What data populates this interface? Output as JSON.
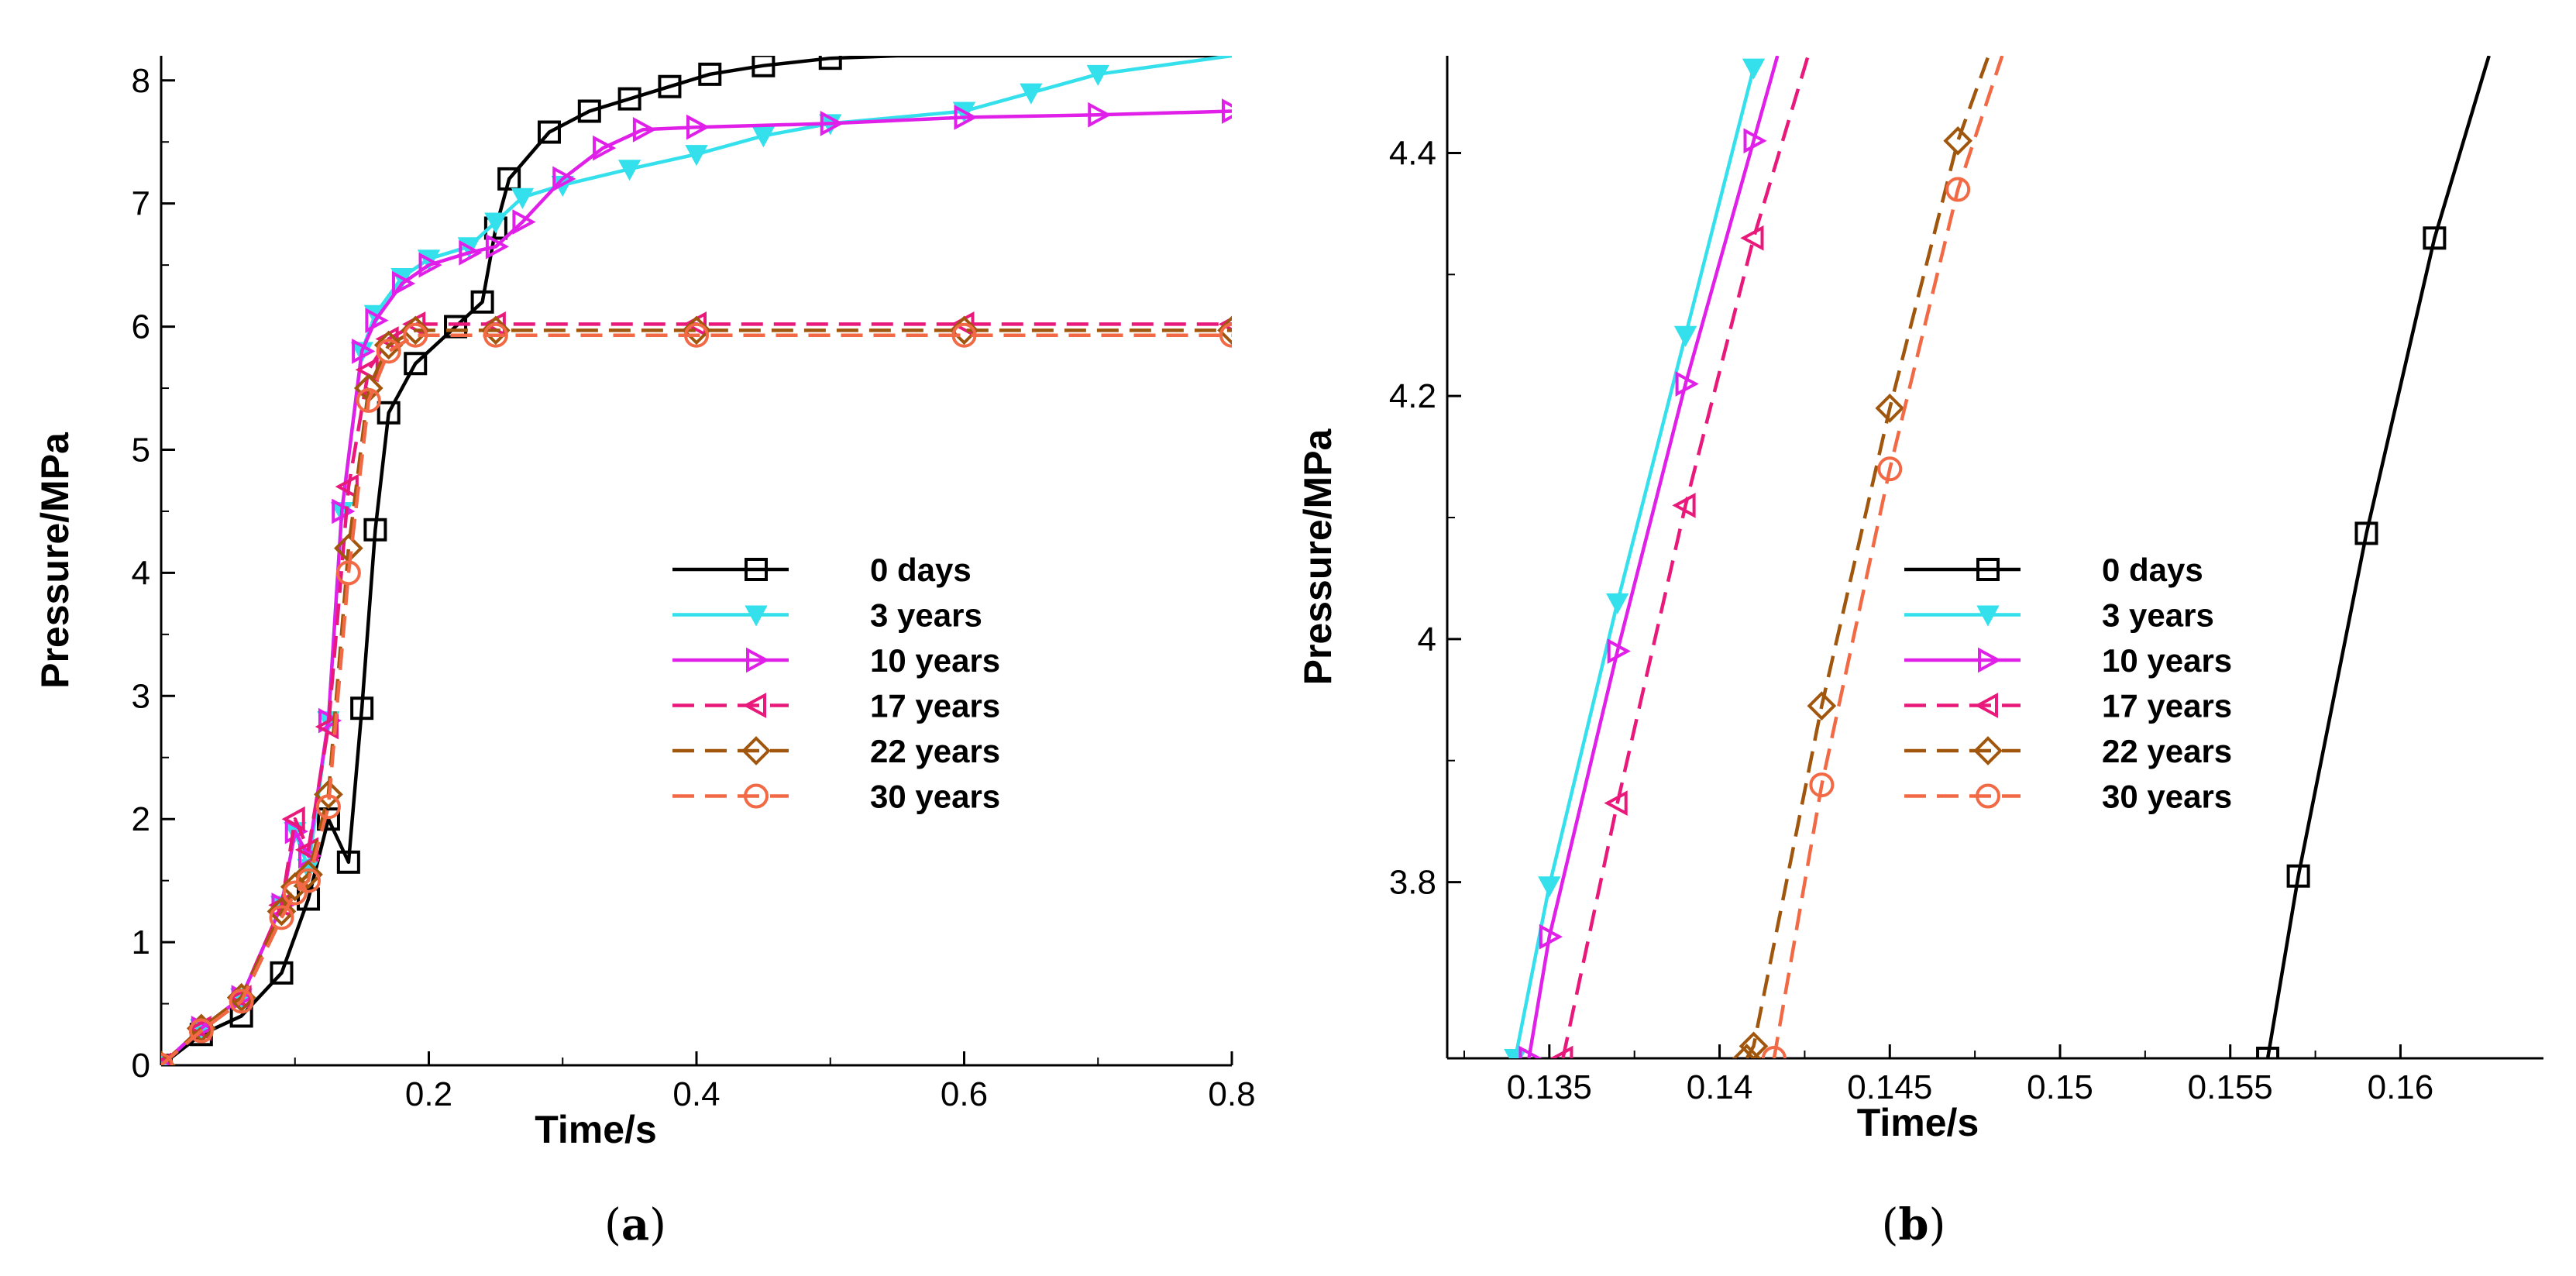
{
  "chart_data": [
    {
      "type": "line",
      "panel": "(a)",
      "caption_letter": "a",
      "xlabel": "Time/s",
      "ylabel": "Pressure/MPa",
      "xlim": [
        0,
        0.8
      ],
      "ylim": [
        0,
        8.2
      ],
      "xticks": [
        0.2,
        0.4,
        0.6,
        0.8
      ],
      "xtick_labels": [
        "0.2",
        "0.4",
        "0.6",
        "0.8"
      ],
      "yticks": [
        0,
        1,
        2,
        3,
        4,
        5,
        6,
        7,
        8
      ],
      "ytick_labels": [
        "0",
        "1",
        "2",
        "3",
        "4",
        "5",
        "6",
        "7",
        "8"
      ],
      "legend_position": "center-right",
      "series": [
        {
          "name": "0 days",
          "color": "#000000",
          "dash": "solid",
          "marker": "square",
          "x": [
            0,
            0.03,
            0.06,
            0.09,
            0.11,
            0.125,
            0.14,
            0.15,
            0.16,
            0.17,
            0.19,
            0.22,
            0.24,
            0.25,
            0.26,
            0.29,
            0.32,
            0.35,
            0.38,
            0.41,
            0.45,
            0.5,
            0.55,
            0.6,
            0.7,
            0.8
          ],
          "y": [
            0,
            0.25,
            0.4,
            0.75,
            1.35,
            2.0,
            1.65,
            2.9,
            4.35,
            5.3,
            5.7,
            6.0,
            6.2,
            6.8,
            7.2,
            7.58,
            7.75,
            7.85,
            7.95,
            8.05,
            8.12,
            8.18,
            8.2,
            8.2,
            8.2,
            8.2
          ]
        },
        {
          "name": "3 years",
          "color": "#33E0EC",
          "dash": "solid",
          "marker": "triangle-down",
          "x": [
            0,
            0.03,
            0.06,
            0.09,
            0.1,
            0.11,
            0.125,
            0.135,
            0.15,
            0.16,
            0.18,
            0.2,
            0.23,
            0.25,
            0.27,
            0.3,
            0.35,
            0.4,
            0.45,
            0.5,
            0.6,
            0.65,
            0.7,
            0.8
          ],
          "y": [
            0,
            0.3,
            0.55,
            1.3,
            1.9,
            1.6,
            2.8,
            4.5,
            5.8,
            6.1,
            6.4,
            6.55,
            6.65,
            6.85,
            7.05,
            7.15,
            7.28,
            7.4,
            7.55,
            7.65,
            7.75,
            7.9,
            8.05,
            8.2
          ]
        },
        {
          "name": "10 years",
          "color": "#E020E8",
          "dash": "solid",
          "marker": "triangle-right",
          "x": [
            0,
            0.03,
            0.06,
            0.09,
            0.1,
            0.11,
            0.125,
            0.135,
            0.15,
            0.16,
            0.18,
            0.2,
            0.23,
            0.25,
            0.27,
            0.3,
            0.33,
            0.36,
            0.4,
            0.5,
            0.6,
            0.7,
            0.8
          ],
          "y": [
            0,
            0.3,
            0.55,
            1.3,
            1.9,
            1.7,
            2.8,
            4.5,
            5.8,
            6.05,
            6.35,
            6.5,
            6.6,
            6.65,
            6.85,
            7.2,
            7.45,
            7.6,
            7.62,
            7.65,
            7.7,
            7.72,
            7.75
          ]
        },
        {
          "name": "17 years",
          "color": "#E8197A",
          "dash": "dashed",
          "marker": "triangle-left",
          "x": [
            0,
            0.03,
            0.06,
            0.09,
            0.1,
            0.11,
            0.125,
            0.14,
            0.155,
            0.17,
            0.19,
            0.25,
            0.4,
            0.6,
            0.8
          ],
          "y": [
            0,
            0.3,
            0.55,
            1.3,
            2.0,
            1.75,
            2.75,
            4.7,
            5.65,
            5.9,
            6.02,
            6.02,
            6.02,
            6.02,
            6.02
          ]
        },
        {
          "name": "22 years",
          "color": "#A0560C",
          "dash": "dashed",
          "marker": "diamond",
          "x": [
            0,
            0.03,
            0.06,
            0.09,
            0.1,
            0.11,
            0.125,
            0.14,
            0.155,
            0.17,
            0.19,
            0.25,
            0.4,
            0.6,
            0.8
          ],
          "y": [
            0,
            0.3,
            0.55,
            1.25,
            1.45,
            1.55,
            2.2,
            4.2,
            5.5,
            5.85,
            5.97,
            5.97,
            5.97,
            5.97,
            5.97
          ]
        },
        {
          "name": "30 years",
          "color": "#F26A45",
          "dash": "dashed",
          "marker": "circle",
          "x": [
            0,
            0.03,
            0.06,
            0.09,
            0.1,
            0.11,
            0.125,
            0.14,
            0.155,
            0.17,
            0.19,
            0.25,
            0.4,
            0.6,
            0.8
          ],
          "y": [
            0,
            0.28,
            0.52,
            1.2,
            1.4,
            1.5,
            2.1,
            4.0,
            5.4,
            5.8,
            5.93,
            5.93,
            5.93,
            5.93,
            5.93
          ]
        }
      ]
    },
    {
      "type": "line",
      "panel": "(b)",
      "caption_letter": "b",
      "xlabel": "Time/s",
      "ylabel": "Pressure/MPa",
      "xlim": [
        0.132,
        0.1642
      ],
      "ylim": [
        3.655,
        4.48
      ],
      "xticks": [
        0.135,
        0.14,
        0.145,
        0.15,
        0.155,
        0.16
      ],
      "xtick_labels": [
        "0.135",
        "0.14",
        "0.145",
        "0.15",
        "0.155",
        "0.16"
      ],
      "yticks": [
        3.8,
        4.0,
        4.2,
        4.4
      ],
      "ytick_labels": [
        "3.8",
        "4",
        "4.2",
        "4.4"
      ],
      "legend_position": "center-right",
      "series": [
        {
          "name": "0 days",
          "color": "#000000",
          "dash": "solid",
          "marker": "square",
          "x": [
            0.1561,
            0.157,
            0.159,
            0.161,
            0.1626
          ],
          "y": [
            3.655,
            3.805,
            4.087,
            4.33,
            4.48
          ]
        },
        {
          "name": "3 years",
          "color": "#33E0EC",
          "dash": "solid",
          "marker": "triangle-down",
          "x": [
            0.134,
            0.135,
            0.137,
            0.139,
            0.141
          ],
          "y": [
            3.655,
            3.797,
            4.03,
            4.25,
            4.47
          ]
        },
        {
          "name": "10 years",
          "color": "#E020E8",
          "dash": "solid",
          "marker": "triangle-right",
          "x": [
            0.1344,
            0.135,
            0.137,
            0.139,
            0.141,
            0.1417
          ],
          "y": [
            3.655,
            3.755,
            3.99,
            4.21,
            4.41,
            4.48
          ]
        },
        {
          "name": "17 years",
          "color": "#E8197A",
          "dash": "dashed",
          "marker": "triangle-left",
          "x": [
            0.1354,
            0.137,
            0.139,
            0.141,
            0.1426
          ],
          "y": [
            3.655,
            3.865,
            4.11,
            4.33,
            4.48
          ]
        },
        {
          "name": "22 years",
          "color": "#A0560C",
          "dash": "dashed",
          "marker": "diamond",
          "x": [
            0.1408,
            0.141,
            0.143,
            0.145,
            0.147,
            0.1479
          ],
          "y": [
            3.655,
            3.665,
            3.945,
            4.19,
            4.41,
            4.48
          ]
        },
        {
          "name": "30 years",
          "color": "#F26A45",
          "dash": "dashed",
          "marker": "circle",
          "x": [
            0.1416,
            0.143,
            0.145,
            0.147,
            0.1483
          ],
          "y": [
            3.655,
            3.88,
            4.14,
            4.37,
            4.48
          ]
        }
      ]
    }
  ]
}
